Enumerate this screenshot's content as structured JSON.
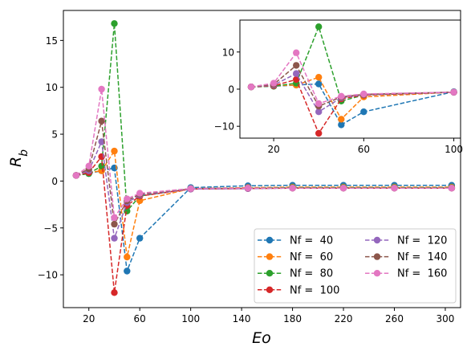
{
  "chart_data": [
    {
      "type": "line",
      "role": "main",
      "xlabel": "Eo",
      "ylabel": "R_b",
      "xlim": [
        0,
        312
      ],
      "ylim": [
        -13.5,
        18.2
      ],
      "xticks": [
        20,
        60,
        100,
        140,
        180,
        220,
        260,
        300
      ],
      "yticks": [
        -10,
        -5,
        0,
        5,
        10,
        15
      ],
      "grid": false,
      "legend": "lower-right, 2 columns",
      "series": [
        {
          "name": "Nf =  40",
          "color": "#1f77b4",
          "x": [
            10,
            20,
            30,
            40,
            50,
            60,
            100,
            145,
            180,
            220,
            260,
            305
          ],
          "y": [
            0.6,
            0.8,
            1.1,
            1.4,
            -9.6,
            -6.1,
            -0.7,
            -0.5,
            -0.45,
            -0.45,
            -0.45,
            -0.45
          ]
        },
        {
          "name": "Nf =  60",
          "color": "#ff7f0e",
          "x": [
            10,
            20,
            30,
            40,
            50,
            60,
            100,
            145,
            180,
            220,
            260,
            305
          ],
          "y": [
            0.6,
            0.9,
            1.1,
            3.2,
            -8.1,
            -2.1,
            -0.8,
            -0.7,
            -0.65,
            -0.65,
            -0.65,
            -0.65
          ]
        },
        {
          "name": "Nf =  80",
          "color": "#2ca02c",
          "x": [
            10,
            20,
            30,
            40,
            50,
            60,
            100,
            145,
            180,
            220,
            260,
            305
          ],
          "y": [
            0.6,
            0.8,
            1.6,
            16.8,
            -3.2,
            -1.6,
            -0.8,
            -0.75,
            -0.7,
            -0.7,
            -0.7,
            -0.7
          ]
        },
        {
          "name": "Nf =  100",
          "color": "#d62728",
          "x": [
            10,
            20,
            30,
            40,
            50,
            60,
            100,
            145,
            180,
            220,
            260,
            305
          ],
          "y": [
            0.6,
            0.9,
            2.6,
            -11.9,
            -2.6,
            -1.6,
            -0.85,
            -0.8,
            -0.75,
            -0.75,
            -0.75,
            -0.75
          ]
        },
        {
          "name": "Nf =  120",
          "color": "#9467bd",
          "x": [
            10,
            20,
            30,
            40,
            50,
            60,
            100,
            145,
            180,
            220,
            260,
            305
          ],
          "y": [
            0.6,
            1.1,
            4.2,
            -6.1,
            -2.3,
            -1.5,
            -0.85,
            -0.8,
            -0.75,
            -0.75,
            -0.75,
            -0.75
          ]
        },
        {
          "name": "Nf =  140",
          "color": "#8c564b",
          "x": [
            10,
            20,
            30,
            40,
            50,
            60,
            100,
            145,
            180,
            220,
            260,
            305
          ],
          "y": [
            0.6,
            1.3,
            6.4,
            -4.6,
            -2.1,
            -1.4,
            -0.8,
            -0.75,
            -0.75,
            -0.75,
            -0.75,
            -0.75
          ]
        },
        {
          "name": "Nf =  160",
          "color": "#e377c2",
          "x": [
            10,
            20,
            30,
            40,
            50,
            60,
            100,
            145,
            180,
            220,
            260,
            305
          ],
          "y": [
            0.6,
            1.6,
            9.8,
            -3.9,
            -1.9,
            -1.3,
            -0.8,
            -0.75,
            -0.75,
            -0.75,
            -0.75,
            -0.75
          ]
        }
      ]
    },
    {
      "type": "line",
      "role": "inset",
      "xlim": [
        5,
        103
      ],
      "ylim": [
        -13.2,
        18.6
      ],
      "xticks": [
        20,
        60,
        100
      ],
      "yticks": [
        -10,
        0,
        10
      ],
      "grid": false,
      "series_x": [
        10,
        20,
        30,
        40,
        50,
        60,
        100
      ],
      "series_from_main": true
    }
  ]
}
